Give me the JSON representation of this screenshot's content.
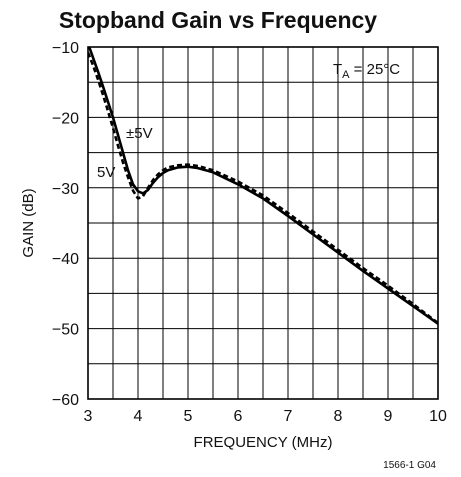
{
  "chart_data": {
    "type": "line",
    "title": "Stopband Gain vs Frequency",
    "xlabel": "FREQUENCY (MHz)",
    "ylabel": "GAIN (dB)",
    "xlim": [
      3,
      10
    ],
    "ylim": [
      -60,
      -10
    ],
    "xticks": [
      "3",
      "4",
      "5",
      "6",
      "7",
      "8",
      "9",
      "10"
    ],
    "yticks": [
      "−10",
      "−20",
      "−30",
      "−40",
      "−50",
      "−60"
    ],
    "x_grid_step": 0.5,
    "y_grid_step": 5,
    "grid": true,
    "condition": {
      "main": "T",
      "sub": "A",
      "rest": " = 25°C"
    },
    "series": [
      {
        "name": "±5V",
        "style": "solid",
        "x": [
          3.0,
          3.1,
          3.2,
          3.3,
          3.4,
          3.5,
          3.6,
          3.7,
          3.8,
          3.9,
          4.0,
          4.1,
          4.2,
          4.3,
          4.4,
          4.5,
          4.6,
          4.8,
          5.0,
          5.2,
          5.5,
          6.0,
          6.5,
          7.0,
          7.5,
          8.0,
          8.5,
          9.0,
          9.5,
          10.0
        ],
        "y": [
          -9.5,
          -11.5,
          -13.5,
          -15.6,
          -17.8,
          -20.0,
          -22.5,
          -25.0,
          -27.5,
          -29.5,
          -30.5,
          -30.8,
          -30.3,
          -29.3,
          -28.5,
          -27.9,
          -27.5,
          -27.1,
          -27.0,
          -27.2,
          -27.8,
          -29.5,
          -31.5,
          -34.0,
          -36.6,
          -39.2,
          -41.8,
          -44.3,
          -46.8,
          -49.3
        ]
      },
      {
        "name": "5V",
        "style": "dashed",
        "x": [
          3.0,
          3.1,
          3.2,
          3.3,
          3.4,
          3.5,
          3.6,
          3.7,
          3.8,
          3.9,
          4.0,
          4.1,
          4.2,
          4.3,
          4.4,
          4.5,
          4.6,
          4.8,
          5.0,
          5.2,
          5.5,
          6.0,
          6.5,
          7.0,
          7.5,
          8.0,
          8.5,
          9.0,
          9.5,
          10.0
        ],
        "y": [
          -10.8,
          -12.6,
          -14.6,
          -16.8,
          -19.1,
          -21.5,
          -24.0,
          -26.4,
          -28.5,
          -30.4,
          -31.5,
          -31.2,
          -30.0,
          -28.9,
          -28.1,
          -27.5,
          -27.1,
          -26.8,
          -26.7,
          -26.9,
          -27.5,
          -29.1,
          -31.1,
          -33.6,
          -36.2,
          -38.8,
          -41.4,
          -43.9,
          -46.5,
          -49.2
        ]
      }
    ]
  },
  "figure_code": "1566-1 G04"
}
